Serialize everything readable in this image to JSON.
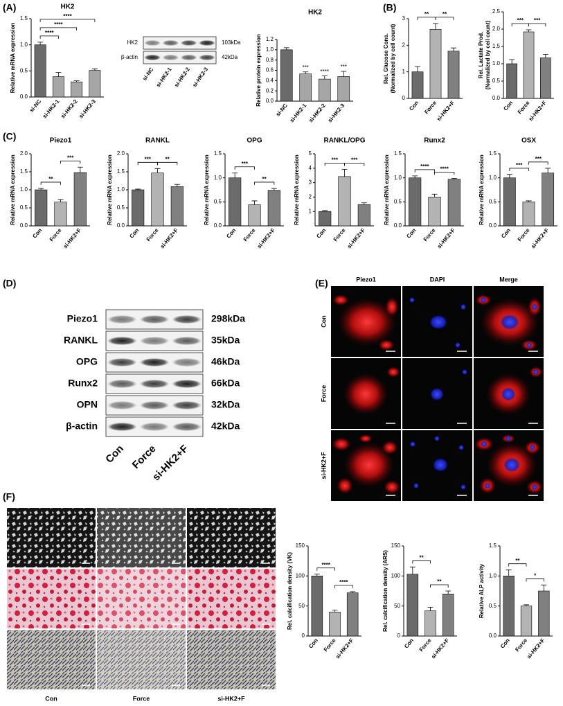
{
  "panel_labels": [
    "(A)",
    "(B)",
    "(C)",
    "(D)",
    "(E)",
    "(F)"
  ],
  "chart_data": [
    {
      "type": "bar",
      "title": "HK2",
      "ylabel": "Relative mRNA expression",
      "categories": [
        "si-NC",
        "si-HK2-1",
        "si-HK2-2",
        "si-HK2-3"
      ],
      "values": [
        1.0,
        0.39,
        0.29,
        0.51
      ],
      "errors": [
        0.05,
        0.08,
        0.02,
        0.03
      ],
      "colors": [
        "#6b6b6b",
        "#a6a6a6",
        "#a6a6a6",
        "#a6a6a6"
      ],
      "ylim": [
        0,
        1.5
      ],
      "yticks": [
        {
          "value": 0,
          "label": "0.0"
        },
        0.5,
        {
          "value": 1,
          "label": "1.0"
        },
        1.5
      ],
      "brackets": [
        {
          "between": [
            0,
            1
          ],
          "label": "****"
        },
        {
          "between": [
            0,
            2
          ],
          "label": "****"
        },
        {
          "between": [
            0,
            3
          ],
          "label": "****"
        }
      ]
    },
    {
      "type": "bar",
      "title": "HK2",
      "ylabel": "Relative protein expression",
      "categories": [
        "si-NC",
        "si-HK2-1",
        "si-HK2-2",
        "si-HK2-3"
      ],
      "values": [
        1.0,
        0.53,
        0.43,
        0.48
      ],
      "errors": [
        0.04,
        0.04,
        0.06,
        0.1
      ],
      "colors": [
        "#6b6b6b",
        "#a6a6a6",
        "#a6a6a6",
        "#a6a6a6"
      ],
      "ylim": [
        0,
        1.2
      ],
      "yticks": [
        {
          "value": 0,
          "label": "0.0"
        },
        0.2,
        0.4,
        0.6,
        0.8,
        {
          "value": 1,
          "label": "1.0"
        },
        1.2
      ],
      "bar_labels": [
        null,
        "***",
        "****",
        "***"
      ]
    },
    {
      "type": "bar",
      "ylabel": [
        "Rel. Glucose Cons.",
        "(Normalized by cell count)"
      ],
      "categories": [
        "Con",
        "Force",
        "si-HK2+F"
      ],
      "values": [
        1.0,
        2.6,
        1.78
      ],
      "errors": [
        0.2,
        0.22,
        0.12
      ],
      "colors": [
        "#6b6b6b",
        "#b3b3b3",
        "#808080"
      ],
      "ylim": [
        0,
        3
      ],
      "yticks": [
        0,
        1,
        2,
        3
      ],
      "brackets": [
        {
          "between": [
            0,
            1
          ],
          "label": "**"
        },
        {
          "between": [
            1,
            2
          ],
          "label": "**"
        }
      ]
    },
    {
      "type": "bar",
      "ylabel": [
        "Rel. Lactate Prod.",
        "(Normalized by cell count)"
      ],
      "categories": [
        "Con",
        "Force",
        "si-HK2+F"
      ],
      "values": [
        1.0,
        1.92,
        1.17
      ],
      "errors": [
        0.12,
        0.06,
        0.1
      ],
      "colors": [
        "#6b6b6b",
        "#b3b3b3",
        "#808080"
      ],
      "ylim": [
        0,
        2.5
      ],
      "yticks": [
        {
          "value": 0,
          "label": "0.0"
        },
        0.5,
        {
          "value": 1,
          "label": "1.0"
        },
        1.5,
        {
          "value": 2,
          "label": "2.0"
        },
        2.5
      ],
      "brackets": [
        {
          "between": [
            0,
            1
          ],
          "label": "***"
        },
        {
          "between": [
            1,
            2
          ],
          "label": "***"
        }
      ]
    },
    {
      "type": "bar",
      "title": "Piezo1",
      "ylabel": "Relative mRNA expression",
      "categories": [
        "Con",
        "Force",
        "si-HK2+F"
      ],
      "values": [
        1.0,
        0.66,
        1.48
      ],
      "errors": [
        0.04,
        0.07,
        0.15
      ],
      "colors": [
        "#6b6b6b",
        "#b3b3b3",
        "#808080"
      ],
      "ylim": [
        0,
        2
      ],
      "yticks": [
        {
          "value": 0,
          "label": "0.0"
        },
        0.5,
        {
          "value": 1,
          "label": "1.0"
        },
        1.5,
        {
          "value": 2,
          "label": "2.0"
        }
      ],
      "brackets": [
        {
          "between": [
            0,
            1
          ],
          "label": "**"
        },
        {
          "between": [
            1,
            2
          ],
          "label": "***"
        }
      ]
    },
    {
      "type": "bar",
      "title": "RANKL",
      "ylabel": "Relative mRNA expression",
      "categories": [
        "Con",
        "Force",
        "si-HK2+F"
      ],
      "values": [
        1.0,
        1.47,
        1.09
      ],
      "errors": [
        0.02,
        0.12,
        0.06
      ],
      "colors": [
        "#6b6b6b",
        "#b3b3b3",
        "#808080"
      ],
      "ylim": [
        0,
        2
      ],
      "yticks": [
        {
          "value": 0,
          "label": "0.0"
        },
        0.5,
        {
          "value": 1,
          "label": "1.0"
        },
        1.5,
        {
          "value": 2,
          "label": "2.0"
        }
      ],
      "brackets": [
        {
          "between": [
            0,
            1
          ],
          "label": "***"
        },
        {
          "between": [
            1,
            2
          ],
          "label": "**"
        }
      ]
    },
    {
      "type": "bar",
      "title": "OPG",
      "ylabel": "Relative mRNA expression",
      "categories": [
        "Con",
        "Force",
        "si-HK2+F"
      ],
      "values": [
        1.0,
        0.44,
        0.74
      ],
      "errors": [
        0.1,
        0.08,
        0.04
      ],
      "colors": [
        "#6b6b6b",
        "#b3b3b3",
        "#808080"
      ],
      "ylim": [
        0,
        1.5
      ],
      "yticks": [
        {
          "value": 0,
          "label": "0.0"
        },
        0.5,
        {
          "value": 1,
          "label": "1.0"
        },
        1.5
      ],
      "brackets": [
        {
          "between": [
            0,
            1
          ],
          "label": "***"
        },
        {
          "between": [
            1,
            2
          ],
          "label": "**"
        }
      ]
    },
    {
      "type": "bar",
      "title": "RANKL/OPG",
      "ylabel": "Relative mRNA expression",
      "categories": [
        "Con",
        "Force",
        "si-HK2+F"
      ],
      "values": [
        1.0,
        3.42,
        1.48
      ],
      "errors": [
        0.06,
        0.5,
        0.12
      ],
      "colors": [
        "#6b6b6b",
        "#b3b3b3",
        "#808080"
      ],
      "ylim": [
        0,
        5
      ],
      "yticks": [
        1,
        2,
        3,
        4,
        5
      ],
      "brackets": [
        {
          "between": [
            0,
            1
          ],
          "label": "***"
        },
        {
          "between": [
            1,
            2
          ],
          "label": "***"
        }
      ]
    },
    {
      "type": "bar",
      "title": "Runx2",
      "ylabel": "Relative mRNA expression",
      "categories": [
        "Con",
        "Force",
        "si-HK2+F"
      ],
      "values": [
        1.0,
        0.6,
        0.97
      ],
      "errors": [
        0.04,
        0.06,
        0.02
      ],
      "colors": [
        "#6b6b6b",
        "#b3b3b3",
        "#808080"
      ],
      "ylim": [
        0,
        1.5
      ],
      "yticks": [
        {
          "value": 0,
          "label": "0.0"
        },
        0.5,
        {
          "value": 1,
          "label": "1.0"
        },
        1.5
      ],
      "brackets": [
        {
          "between": [
            0,
            1
          ],
          "label": "****"
        },
        {
          "between": [
            1,
            2
          ],
          "label": "****"
        }
      ]
    },
    {
      "type": "bar",
      "title": "OSX",
      "ylabel": "Relative mRNA expression",
      "categories": [
        "Con",
        "Force",
        "si-HK2+F"
      ],
      "values": [
        1.0,
        0.5,
        1.1
      ],
      "errors": [
        0.07,
        0.02,
        0.1
      ],
      "colors": [
        "#6b6b6b",
        "#b3b3b3",
        "#808080"
      ],
      "ylim": [
        0,
        1.5
      ],
      "yticks": [
        {
          "value": 0,
          "label": "0.0"
        },
        0.5,
        {
          "value": 1,
          "label": "1.0"
        },
        1.5
      ],
      "brackets": [
        {
          "between": [
            0,
            1
          ],
          "label": "***"
        },
        {
          "between": [
            1,
            2
          ],
          "label": "***"
        }
      ]
    },
    {
      "type": "bar",
      "ylabel": "Rel. calcification density (VK)",
      "categories": [
        "Con",
        "Force",
        "si-HK2+F"
      ],
      "values": [
        100,
        40,
        72
      ],
      "errors": [
        3,
        3,
        2
      ],
      "colors": [
        "#6b6b6b",
        "#b3b3b3",
        "#808080"
      ],
      "ylim": [
        0,
        150
      ],
      "yticks": [
        0,
        50,
        100,
        150
      ],
      "brackets": [
        {
          "between": [
            0,
            1
          ],
          "label": "****"
        },
        {
          "between": [
            1,
            2
          ],
          "label": "****"
        }
      ]
    },
    {
      "type": "bar",
      "ylabel": "Rel. calcification density (ARS)",
      "categories": [
        "Con",
        "Force",
        "si-HK2+F"
      ],
      "values": [
        103,
        42,
        70
      ],
      "errors": [
        12,
        6,
        5
      ],
      "colors": [
        "#6b6b6b",
        "#b3b3b3",
        "#808080"
      ],
      "ylim": [
        0,
        150
      ],
      "yticks": [
        0,
        50,
        100,
        150
      ],
      "brackets": [
        {
          "between": [
            0,
            1
          ],
          "label": "**"
        },
        {
          "between": [
            1,
            2
          ],
          "label": "**"
        }
      ]
    },
    {
      "type": "bar",
      "ylabel": "Relative ALP activity",
      "categories": [
        "Con",
        "Force",
        "si-HK2+F"
      ],
      "values": [
        1.0,
        0.5,
        0.75
      ],
      "errors": [
        0.1,
        0.02,
        0.1
      ],
      "colors": [
        "#6b6b6b",
        "#b3b3b3",
        "#808080"
      ],
      "ylim": [
        0,
        1.5
      ],
      "yticks": [
        {
          "value": 0,
          "label": "0.0"
        },
        0.5,
        {
          "value": 1,
          "label": "1.0"
        },
        1.5
      ],
      "brackets": [
        {
          "between": [
            0,
            1
          ],
          "label": "**"
        },
        {
          "between": [
            1,
            2
          ],
          "label": "*"
        }
      ]
    }
  ],
  "blot_a": {
    "rows": [
      "HK2",
      "β-actin"
    ],
    "sizes": [
      "103kDa",
      "42kDa"
    ],
    "lanes": [
      "si-NC",
      "si-HK2-1",
      "si-HK2-2",
      "si-HK2-3"
    ]
  },
  "blot_d": {
    "rows": [
      "Piezo1",
      "RANKL",
      "OPG",
      "Runx2",
      "OPN",
      "β-actin"
    ],
    "sizes": [
      "298kDa",
      "35kDa",
      "46kDa",
      "66kDa",
      "32kDa",
      "42kDa"
    ],
    "lanes": [
      "Con",
      "Force",
      "si-HK2+F"
    ]
  },
  "fluorescence": {
    "columns": [
      "Piezo1",
      "DAPI",
      "Merge"
    ],
    "rows": [
      "Con",
      "Force",
      "si-HK2+F"
    ]
  },
  "staining": {
    "columns": [
      "Con",
      "Force",
      "si-HK2+F"
    ]
  }
}
